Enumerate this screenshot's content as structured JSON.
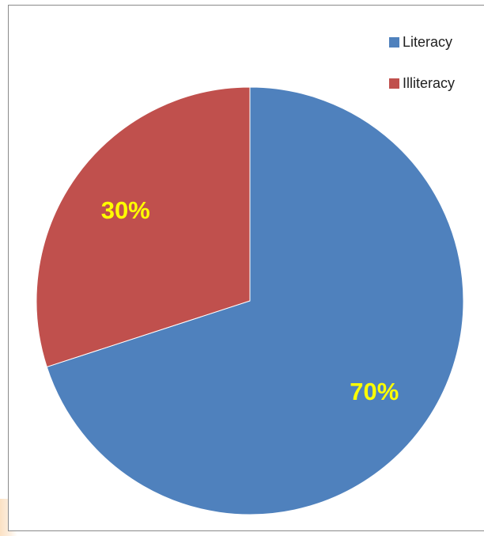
{
  "chart_data": {
    "type": "pie",
    "categories": [
      "Literacy",
      "Illiteracy"
    ],
    "values": [
      70,
      30
    ],
    "data_labels": [
      "70%",
      "30%"
    ],
    "colors": [
      "#4f81bd",
      "#c0504d"
    ],
    "label_color": "#ffff00",
    "start_angle_deg": 0,
    "direction": "clockwise",
    "legend_position": "top-right",
    "title": "",
    "legend": [
      {
        "label": "Literacy",
        "color": "#4f81bd"
      },
      {
        "label": "Illiteracy",
        "color": "#c0504d"
      }
    ]
  }
}
